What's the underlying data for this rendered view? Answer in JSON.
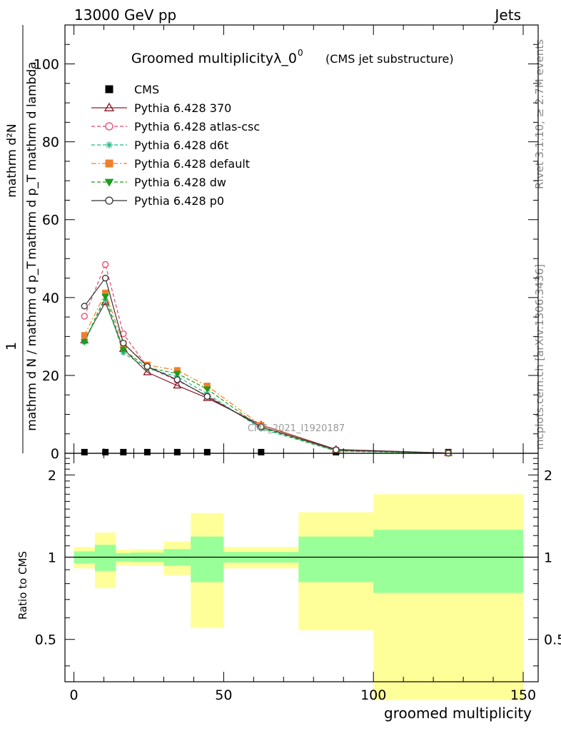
{
  "header": {
    "left": "13000 GeV pp",
    "right": "Jets"
  },
  "side_labels": {
    "rivet": "Rivet 3.1.10, ≥ 2.7M events",
    "mcplots": "mcplots.cern.ch [arXiv:1306.3436]"
  },
  "analysis_id": "CMS_2021_I1920187",
  "chart_data": [
    {
      "type": "line",
      "title": "Groomed multiplicityλ_0",
      "title_superscript": "0",
      "subtitle": "(CMS jet substructure)",
      "ylabel": {
        "numerator": "mathrm d²N",
        "denominator": "mathrm d p_T mathrm d lambda",
        "prefix_numerator": "1",
        "prefix_denominator": "mathrm d N / mathrm d p_T"
      },
      "xlim": [
        -3,
        155
      ],
      "ylim": [
        0,
        110
      ],
      "yticks": [
        0,
        20,
        40,
        60,
        80,
        100
      ],
      "x": [
        3.5,
        10.5,
        16.5,
        24.5,
        34.5,
        44.5,
        62.5,
        87.5,
        125
      ],
      "legend_position": "top-left",
      "series": [
        {
          "name": "CMS",
          "color": "#000000",
          "marker": "square",
          "dash": "none",
          "values": [
            0.3,
            0.3,
            0.3,
            0.3,
            0.3,
            0.3,
            0.3,
            0.3,
            0.3
          ]
        },
        {
          "name": "Pythia 6.428 370",
          "color": "#8b1a2b",
          "marker": "triangle-open",
          "dash": "solid",
          "values": [
            29,
            38.8,
            26.8,
            20.8,
            17.4,
            14.2,
            7.3,
            1.0,
            0.05
          ]
        },
        {
          "name": "Pythia 6.428 atlas-csc",
          "color": "#e8446a",
          "marker": "circle-open",
          "dash": "dashed",
          "values": [
            35.2,
            48.5,
            30.7,
            22.2,
            18.7,
            14.8,
            6.8,
            0.8,
            0.04
          ]
        },
        {
          "name": "Pythia 6.428 d6t",
          "color": "#22bb88",
          "marker": "asterisk",
          "dash": "dashed",
          "values": [
            28.5,
            39.5,
            25.8,
            21.8,
            19.7,
            15.3,
            6.3,
            0.6,
            0.03
          ]
        },
        {
          "name": "Pythia 6.428 default",
          "color": "#f07f2a",
          "marker": "square-filled",
          "dash": "dashdot",
          "values": [
            30.3,
            41.2,
            28.1,
            22.7,
            21.3,
            17.3,
            7.2,
            0.8,
            0.04
          ]
        },
        {
          "name": "Pythia 6.428 dw",
          "color": "#1a9f1a",
          "marker": "triangle-down-filled",
          "dash": "dashed",
          "values": [
            28.7,
            40.3,
            26.6,
            22.0,
            20.5,
            16.5,
            6.6,
            0.6,
            0.03
          ]
        },
        {
          "name": "Pythia 6.428 p0",
          "color": "#333333",
          "marker": "circle-open",
          "dash": "solid",
          "values": [
            37.8,
            45.0,
            28.3,
            22.3,
            18.9,
            14.6,
            6.8,
            0.9,
            0.05
          ]
        }
      ]
    },
    {
      "type": "area",
      "ylabel": "Ratio to CMS",
      "xlabel": "groomed multiplicity",
      "xlim": [
        -3,
        155
      ],
      "ylim": [
        0.35,
        2.4
      ],
      "yticks": [
        0.5,
        1,
        2
      ],
      "xticks": [
        0,
        50,
        100,
        150
      ],
      "reference_line": 1,
      "bins": [
        {
          "lo": 0,
          "hi": 7,
          "inner": [
            0.95,
            1.05
          ],
          "outer": [
            0.91,
            1.09
          ]
        },
        {
          "lo": 7,
          "hi": 14,
          "inner": [
            0.89,
            1.11
          ],
          "outer": [
            0.77,
            1.23
          ]
        },
        {
          "lo": 14,
          "hi": 19,
          "inner": [
            0.965,
            1.035
          ],
          "outer": [
            0.935,
            1.065
          ]
        },
        {
          "lo": 19,
          "hi": 30,
          "inner": [
            0.96,
            1.04
          ],
          "outer": [
            0.93,
            1.07
          ]
        },
        {
          "lo": 30,
          "hi": 39,
          "inner": [
            0.93,
            1.07
          ],
          "outer": [
            0.86,
            1.14
          ]
        },
        {
          "lo": 39,
          "hi": 50,
          "inner": [
            0.81,
            1.19
          ],
          "outer": [
            0.55,
            1.45
          ]
        },
        {
          "lo": 50,
          "hi": 75,
          "inner": [
            0.955,
            1.045
          ],
          "outer": [
            0.91,
            1.09
          ]
        },
        {
          "lo": 75,
          "hi": 100,
          "inner": [
            0.81,
            1.19
          ],
          "outer": [
            0.54,
            1.46
          ]
        },
        {
          "lo": 100,
          "hi": 150,
          "inner": [
            0.74,
            1.26
          ],
          "outer": [
            0.3,
            1.7
          ]
        }
      ],
      "colors": {
        "inner": "#99ff99",
        "outer": "#ffff99"
      }
    }
  ]
}
